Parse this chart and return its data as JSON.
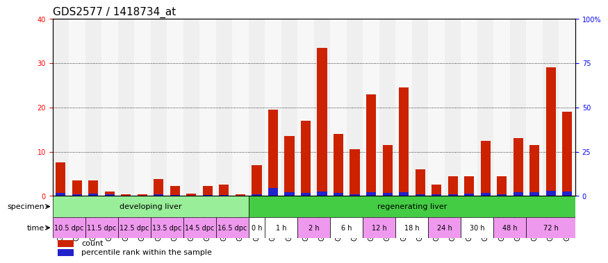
{
  "title": "GDS2577 / 1418734_at",
  "samples": [
    "GSM161128",
    "GSM161129",
    "GSM161130",
    "GSM161131",
    "GSM161132",
    "GSM161133",
    "GSM161134",
    "GSM161135",
    "GSM161136",
    "GSM161137",
    "GSM161138",
    "GSM161139",
    "GSM161108",
    "GSM161109",
    "GSM161110",
    "GSM161111",
    "GSM161112",
    "GSM161113",
    "GSM161114",
    "GSM161115",
    "GSM161116",
    "GSM161117",
    "GSM161118",
    "GSM161119",
    "GSM161120",
    "GSM161121",
    "GSM161122",
    "GSM161123",
    "GSM161124",
    "GSM161125",
    "GSM161126",
    "GSM161127"
  ],
  "count_values": [
    7.5,
    3.5,
    3.5,
    1.0,
    0.3,
    0.3,
    3.8,
    2.2,
    0.5,
    2.2,
    2.5,
    0.3,
    7.0,
    19.5,
    13.5,
    17.0,
    33.5,
    14.0,
    10.5,
    23.0,
    11.5,
    24.5,
    6.0,
    2.5,
    4.5,
    4.5,
    12.5,
    4.5,
    13.0,
    11.5,
    29.0,
    19.0
  ],
  "percentile_values": [
    1.5,
    1.0,
    1.2,
    0.8,
    0.3,
    0.3,
    0.8,
    0.5,
    0.3,
    0.5,
    0.5,
    0.3,
    0.8,
    4.5,
    2.2,
    1.5,
    2.5,
    1.5,
    1.0,
    2.0,
    1.5,
    2.0,
    1.0,
    0.8,
    1.0,
    1.2,
    1.8,
    1.0,
    2.0,
    2.2,
    3.0,
    2.5
  ],
  "ylim_left": [
    0,
    40
  ],
  "ylim_right": [
    0,
    100
  ],
  "yticks_left": [
    0,
    10,
    20,
    30,
    40
  ],
  "yticks_right": [
    0,
    25,
    50,
    75,
    100
  ],
  "ytick_labels_right": [
    "0",
    "25",
    "50",
    "75",
    "100%"
  ],
  "bar_color_red": "#cc2200",
  "bar_color_blue": "#2222cc",
  "specimen_groups": [
    {
      "label": "developing liver",
      "start": 0,
      "end": 12,
      "color": "#99ee99"
    },
    {
      "label": "regenerating liver",
      "start": 12,
      "end": 32,
      "color": "#44cc44"
    }
  ],
  "time_groups": [
    {
      "label": "10.5 dpc",
      "start": 0,
      "end": 2
    },
    {
      "label": "11.5 dpc",
      "start": 2,
      "end": 4
    },
    {
      "label": "12.5 dpc",
      "start": 4,
      "end": 6
    },
    {
      "label": "13.5 dpc",
      "start": 6,
      "end": 8
    },
    {
      "label": "14.5 dpc",
      "start": 8,
      "end": 10
    },
    {
      "label": "16.5 dpc",
      "start": 10,
      "end": 12
    },
    {
      "label": "0 h",
      "start": 12,
      "end": 13
    },
    {
      "label": "1 h",
      "start": 13,
      "end": 15
    },
    {
      "label": "2 h",
      "start": 15,
      "end": 17
    },
    {
      "label": "6 h",
      "start": 17,
      "end": 19
    },
    {
      "label": "12 h",
      "start": 19,
      "end": 21
    },
    {
      "label": "18 h",
      "start": 21,
      "end": 23
    },
    {
      "label": "24 h",
      "start": 23,
      "end": 25
    },
    {
      "label": "30 h",
      "start": 25,
      "end": 27
    },
    {
      "label": "48 h",
      "start": 27,
      "end": 29
    },
    {
      "label": "72 h",
      "start": 29,
      "end": 32
    }
  ],
  "time_group_colors": [
    "#ee99ee",
    "#ee99ee",
    "#ee99ee",
    "#ee99ee",
    "#ee99ee",
    "#ee99ee",
    "#ffffff",
    "#ffffff",
    "#ee99ee",
    "#ffffff",
    "#ee99ee",
    "#ffffff",
    "#ee99ee",
    "#ffffff",
    "#ee99ee",
    "#ee99ee"
  ],
  "legend_items": [
    {
      "label": "count",
      "color": "#cc2200"
    },
    {
      "label": "percentile rank within the sample",
      "color": "#2222cc"
    }
  ],
  "background_color": "#ffffff",
  "bar_width": 0.6,
  "title_fontsize": 11,
  "tick_fontsize": 7,
  "label_fontsize": 8
}
